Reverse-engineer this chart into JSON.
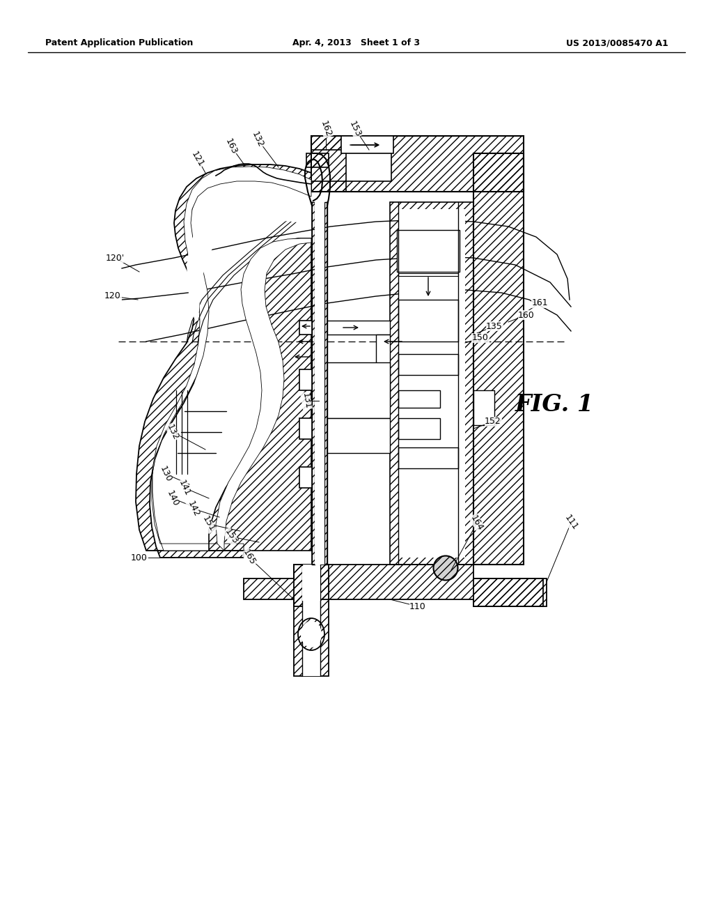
{
  "bg_color": "#ffffff",
  "header_left": "Patent Application Publication",
  "header_center": "Apr. 4, 2013   Sheet 1 of 3",
  "header_right": "US 2013/0085470 A1",
  "fig_label": "FIG. 1"
}
